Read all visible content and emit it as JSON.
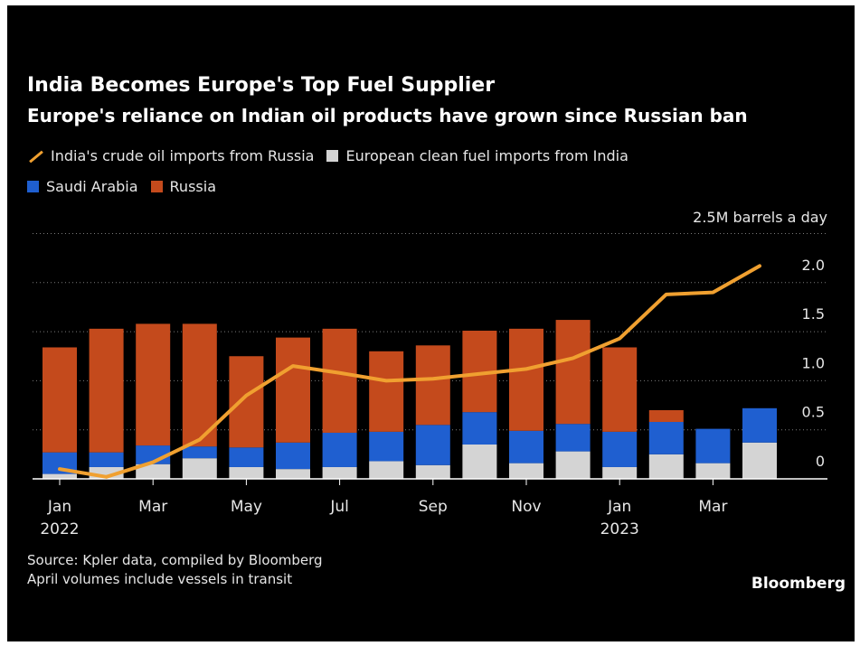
{
  "header": {
    "title": "India Becomes Europe's Top Fuel Supplier",
    "subtitle": "Europe's reliance on Indian oil products have grown since Russian ban"
  },
  "legend": {
    "line": "India's crude oil imports from Russia",
    "clean_fuel": "European clean fuel imports from India",
    "saudi": "Saudi Arabia",
    "russia": "Russia"
  },
  "colors": {
    "background": "#000000",
    "line": "#f0a030",
    "clean_fuel": "#d4d4d4",
    "saudi": "#1f5fd0",
    "russia": "#c44a1c",
    "grid": "#7a7a7a",
    "text": "#e6e6e6"
  },
  "chart_data": {
    "type": "bar",
    "stacked": true,
    "unit_label": "2.5M barrels a day",
    "categories": [
      "Jan 2022",
      "Feb 2022",
      "Mar 2022",
      "Apr 2022",
      "May 2022",
      "Jun 2022",
      "Jul 2022",
      "Aug 2022",
      "Sep 2022",
      "Oct 2022",
      "Nov 2022",
      "Dec 2022",
      "Jan 2023",
      "Feb 2023",
      "Mar 2023",
      "Apr 2023"
    ],
    "x_tick_labels": [
      {
        "index": 0,
        "line1": "Jan",
        "line2": "2022"
      },
      {
        "index": 2,
        "line1": "Mar",
        "line2": ""
      },
      {
        "index": 4,
        "line1": "May",
        "line2": ""
      },
      {
        "index": 6,
        "line1": "Jul",
        "line2": ""
      },
      {
        "index": 8,
        "line1": "Sep",
        "line2": ""
      },
      {
        "index": 10,
        "line1": "Nov",
        "line2": ""
      },
      {
        "index": 12,
        "line1": "Jan",
        "line2": "2023"
      },
      {
        "index": 14,
        "line1": "Mar",
        "line2": ""
      }
    ],
    "series": [
      {
        "name": "European clean fuel imports from India",
        "color_key": "clean_fuel",
        "values": [
          0.05,
          0.12,
          0.15,
          0.21,
          0.12,
          0.1,
          0.12,
          0.18,
          0.14,
          0.35,
          0.16,
          0.28,
          0.12,
          0.25,
          0.16,
          0.37
        ]
      },
      {
        "name": "Saudi Arabia",
        "color_key": "saudi",
        "values": [
          0.22,
          0.15,
          0.19,
          0.12,
          0.2,
          0.27,
          0.35,
          0.3,
          0.41,
          0.33,
          0.33,
          0.28,
          0.36,
          0.33,
          0.35,
          0.35
        ]
      },
      {
        "name": "Russia",
        "color_key": "russia",
        "values": [
          1.07,
          1.26,
          1.24,
          1.25,
          0.93,
          1.07,
          1.06,
          0.82,
          0.81,
          0.83,
          1.04,
          1.06,
          0.86,
          0.12,
          0,
          0
        ]
      }
    ],
    "line_series": {
      "name": "India's crude oil imports from Russia",
      "values": [
        0.1,
        0.02,
        0.17,
        0.4,
        0.85,
        1.15,
        1.08,
        1.0,
        1.02,
        1.07,
        1.12,
        1.23,
        1.43,
        1.88,
        1.9,
        2.17
      ]
    },
    "y_ticks": [
      0,
      0.5,
      1.0,
      1.5,
      2.0
    ],
    "y_tick_labels": [
      "0",
      "0.5",
      "1.0",
      "1.5",
      "2.0"
    ],
    "ylim": [
      0,
      2.5
    ],
    "grid": true
  },
  "footer": {
    "source_line1": "Source: Kpler data, compiled by Bloomberg",
    "source_line2": "April volumes include vessels in transit",
    "brand": "Bloomberg"
  }
}
